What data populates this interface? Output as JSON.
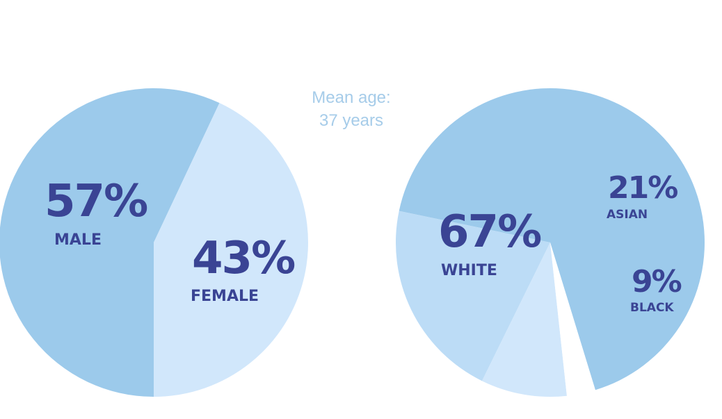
{
  "note": {
    "line1": "Mean age:",
    "line2": "37 years",
    "color": "#a6cce9"
  },
  "colors": {
    "label": "#3a4494",
    "white_slice": "#ffffff"
  },
  "chart_data": [
    {
      "type": "pie",
      "title": "",
      "slices": [
        {
          "label": "MALE",
          "value": 57,
          "display": "57%",
          "color": "#9ccaeb"
        },
        {
          "label": "FEMALE",
          "value": 43,
          "display": "43%",
          "color": "#d1e7fb"
        }
      ]
    },
    {
      "type": "pie",
      "title": "",
      "slices": [
        {
          "label": "WHITE",
          "value": 67,
          "display": "67%",
          "color": "#9ccaeb"
        },
        {
          "label": "ASIAN",
          "value": 21,
          "display": "21%",
          "color": "#bcdcf6"
        },
        {
          "label": "BLACK",
          "value": 9,
          "display": "9%",
          "color": "#d1e7fb"
        },
        {
          "label": "",
          "value": 3,
          "display": "",
          "color": "#ffffff"
        }
      ]
    }
  ]
}
